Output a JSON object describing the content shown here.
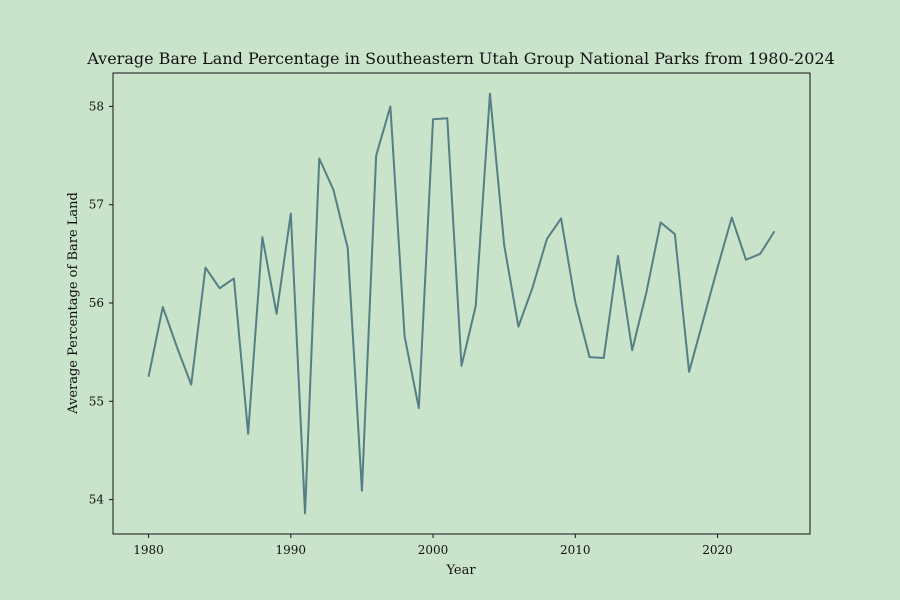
{
  "colors": {
    "background": "#cae3cb",
    "line": "#557e85",
    "axes": "#111111"
  },
  "chart_data": {
    "type": "line",
    "title": "Average Bare Land Percentage in Southeastern Utah Group National Parks from 1980-2024",
    "xlabel": "Year",
    "ylabel": "Average Percentage of Bare Land",
    "xlim": [
      1977.5,
      2026.5
    ],
    "ylim": [
      53.65,
      58.34
    ],
    "xticks": [
      1980,
      1990,
      2000,
      2010,
      2020
    ],
    "yticks": [
      54,
      55,
      56,
      57,
      58
    ],
    "grid": false,
    "legend": "none",
    "series": [
      {
        "x": [
          1980,
          1981,
          1982,
          1983,
          1984,
          1985,
          1986,
          1987,
          1988,
          1989,
          1990,
          1991,
          1992,
          1993,
          1994,
          1995,
          1996,
          1997,
          1998,
          1999,
          2000,
          2001,
          2002,
          2003,
          2004,
          2005,
          2006,
          2007,
          2008,
          2009,
          2010,
          2011,
          2012,
          2013,
          2014,
          2015,
          2016,
          2017,
          2018,
          2019,
          2020,
          2021,
          2022,
          2023,
          2024
        ],
        "values": [
          55.25,
          55.96,
          55.55,
          55.17,
          56.36,
          56.15,
          56.25,
          54.67,
          56.67,
          55.89,
          56.91,
          53.86,
          57.47,
          57.15,
          56.56,
          54.09,
          57.5,
          58.0,
          55.66,
          54.93,
          57.87,
          57.88,
          55.36,
          55.97,
          58.13,
          56.59,
          55.76,
          56.16,
          56.65,
          56.86,
          56.01,
          55.45,
          55.44,
          56.48,
          55.52,
          56.11,
          56.82,
          56.7,
          55.3,
          55.83,
          56.36,
          56.87,
          56.44,
          56.5,
          56.73
        ]
      }
    ]
  }
}
